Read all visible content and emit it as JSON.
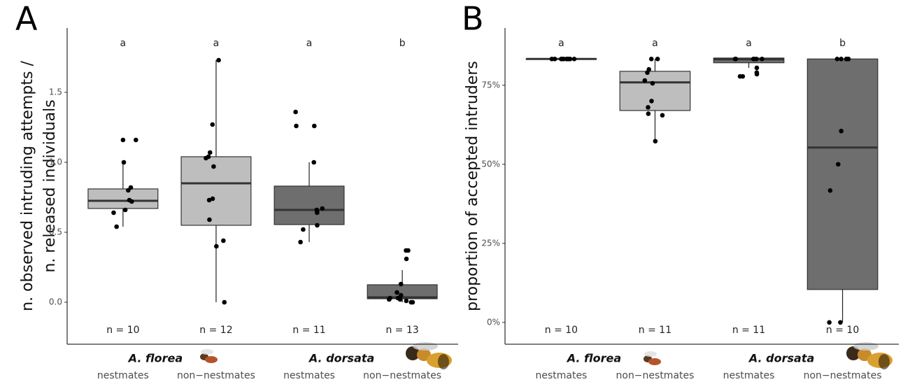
{
  "chart_data": [
    {
      "type": "box",
      "panel_label": "A",
      "ylabel": [
        "n. observed intruding attempts /",
        "n. released individuals"
      ],
      "categories": [
        "nestmates",
        "non−nestmates",
        "nestmates",
        "non−nestmates"
      ],
      "groups": [
        "A. florea",
        "A. dorsata"
      ],
      "ylim": [
        -0.3,
        1.96
      ],
      "yticks": [
        {
          "value": 0,
          "label": "0.0"
        },
        {
          "value": 0.5,
          "label": "0.5"
        },
        {
          "value": 1,
          "label": "1.0"
        },
        {
          "value": 1.5,
          "label": "1.5"
        }
      ],
      "boxes": [
        {
          "low": 0.54,
          "q1": 0.67,
          "median": 0.725,
          "q3": 0.81,
          "high": 1.0,
          "color": "#bebebe",
          "letter": "a",
          "n_label": "n = 10",
          "points": [
            1.16,
            1.16,
            1.0,
            0.82,
            0.8,
            0.73,
            0.72,
            0.66,
            0.64,
            0.54
          ]
        },
        {
          "low": 0,
          "q1": 0.55,
          "median": 0.85,
          "q3": 1.04,
          "high": 1.73,
          "color": "#bebebe",
          "letter": "a",
          "n_label": "n = 12",
          "points": [
            1.73,
            1.27,
            1.07,
            1.04,
            1.03,
            0.97,
            0.74,
            0.73,
            0.59,
            0.44,
            0.4,
            0
          ]
        },
        {
          "low": 0.43,
          "q1": 0.555,
          "median": 0.66,
          "q3": 0.83,
          "high": 1.0,
          "color": "#6e6e6e",
          "letter": "a",
          "n_label": "n = 11",
          "points": [
            1.36,
            1.26,
            1.26,
            1.0,
            0.67,
            0.66,
            0.65,
            0.64,
            0.55,
            0.52,
            0.43
          ]
        },
        {
          "low": 0,
          "q1": 0.025,
          "median": 0.035,
          "q3": 0.125,
          "high": 0.23,
          "color": "#6e6e6e",
          "letter": "b",
          "n_label": "n = 13",
          "points": [
            0.37,
            0.37,
            0.31,
            0.13,
            0.07,
            0.05,
            0.03,
            0.03,
            0.02,
            0.02,
            0.01,
            0,
            0
          ]
        }
      ]
    },
    {
      "type": "box",
      "panel_label": "B",
      "ylabel": [
        "proportion of accepted intruders"
      ],
      "categories": [
        "nestmates",
        "non−nestmates",
        "nestmates",
        "non−nestmates"
      ],
      "groups": [
        "A. florea",
        "A. dorsata"
      ],
      "ylim": [
        -6.9,
        93.1
      ],
      "yticks": [
        {
          "value": 0,
          "label": "0%"
        },
        {
          "value": 25,
          "label": "25%"
        },
        {
          "value": 50,
          "label": "50%"
        },
        {
          "value": 75,
          "label": "75%"
        }
      ],
      "boxes": [
        {
          "low": 83.3,
          "q1": 83.3,
          "median": 83.3,
          "q3": 83.3,
          "high": 83.3,
          "color": "#bebebe",
          "letter": "a",
          "n_label": "n = 10",
          "points": [
            83.3,
            83.3,
            83.3,
            83.3,
            83.3,
            83.3,
            83.3,
            83.3,
            83.3,
            83.3
          ]
        },
        {
          "low": 57.3,
          "q1": 67,
          "median": 75.9,
          "q3": 79.4,
          "high": 83.3,
          "color": "#bebebe",
          "letter": "a",
          "n_label": "n = 11",
          "points": [
            83.3,
            83.3,
            80,
            79,
            76.5,
            75.6,
            70,
            68,
            66,
            65.5,
            57.3
          ]
        },
        {
          "low": 80.5,
          "q1": 82.1,
          "median": 83.2,
          "q3": 83.6,
          "high": 83.6,
          "color": "#6e6e6e",
          "letter": "a",
          "n_label": "n = 11",
          "points": [
            83.3,
            83.3,
            83.3,
            83.3,
            83.3,
            83.3,
            80.5,
            79,
            78.5,
            77.8,
            77.8
          ]
        },
        {
          "low": 0,
          "q1": 10.4,
          "median": 55.3,
          "q3": 83.3,
          "high": 83.3,
          "color": "#6e6e6e",
          "letter": "b",
          "n_label": "n = 10",
          "points": [
            83.3,
            83.3,
            83.3,
            83.3,
            83.3,
            60.5,
            50,
            41.7,
            0,
            0
          ]
        }
      ]
    }
  ]
}
